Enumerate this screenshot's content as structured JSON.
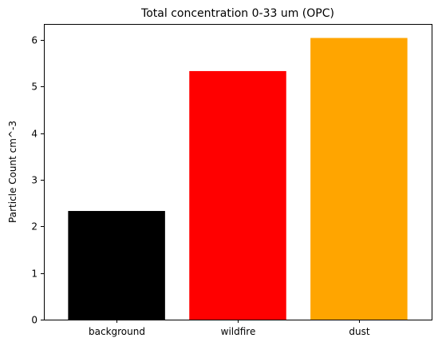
{
  "chart_data": {
    "type": "bar",
    "title": "Total concentration 0-33 um (OPC)",
    "xlabel": "",
    "ylabel": "Particle Count cm^-3",
    "categories": [
      "background",
      "wildfire",
      "dust"
    ],
    "values": [
      2.33,
      5.33,
      6.04
    ],
    "colors": [
      "#000000",
      "#ff0000",
      "#ffa500"
    ],
    "ylim": [
      0,
      6.34
    ],
    "yticks": [
      0,
      1,
      2,
      3,
      4,
      5,
      6
    ],
    "grid": false,
    "legend": "none"
  }
}
